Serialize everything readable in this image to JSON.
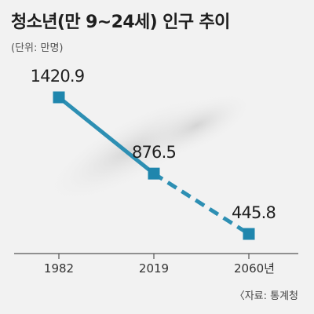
{
  "chart_data": {
    "type": "line",
    "title": "청소년(만 9~24세) 인구 추이",
    "subtitle": "(단위: 만명)",
    "x": [
      "1982",
      "2019",
      "2060"
    ],
    "tick_labels": [
      "1982",
      "2019",
      "2060년"
    ],
    "values": [
      1420.9,
      876.5,
      445.8
    ],
    "data_labels": [
      "1420.9",
      "876.5",
      "445.8"
    ],
    "segments": [
      {
        "from": "1982",
        "to": "2019",
        "style": "solid"
      },
      {
        "from": "2019",
        "to": "2060",
        "style": "dashed",
        "note": "projection"
      }
    ],
    "line_color": "#2d8fb3",
    "marker_color": "#1f86ad",
    "grid": false,
    "source": "〈자료: 통계청"
  }
}
